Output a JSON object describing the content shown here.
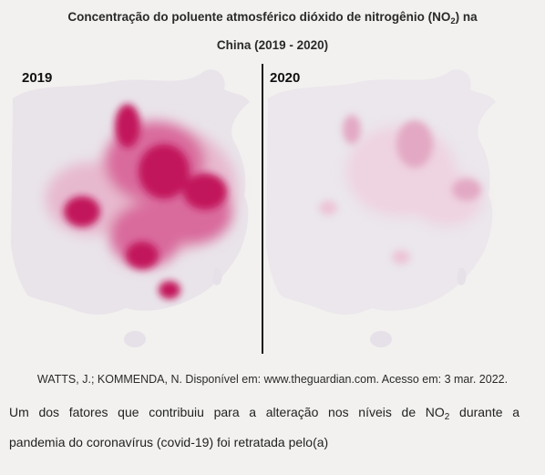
{
  "title": {
    "line1_prefix": "Concentração do poluente atmosférico dióxido de nitrogênio (NO",
    "line1_sub": "2",
    "line1_suffix": ") na",
    "line2": "China (2019 - 2020)"
  },
  "maps": [
    {
      "year": "2019"
    },
    {
      "year": "2020"
    }
  ],
  "source": "WATTS, J.; KOMMENDA, N. Disponível em: www.theguardian.com. Acesso em: 3 mar. 2022.",
  "question": {
    "line1_prefix": "Um dos fatores que contribuiu para a alteração nos níveis de NO",
    "line1_sub": "2",
    "line1_suffix": " durante a",
    "line2": "pandemia do coronavírus (covid-19) foi retratada pelo(a)"
  },
  "colors": {
    "map_land": "#e9e4ea",
    "pollution_high": "#c2185b",
    "pollution_medium": "#d96a9c",
    "pollution_low": "#e7b9cf"
  }
}
